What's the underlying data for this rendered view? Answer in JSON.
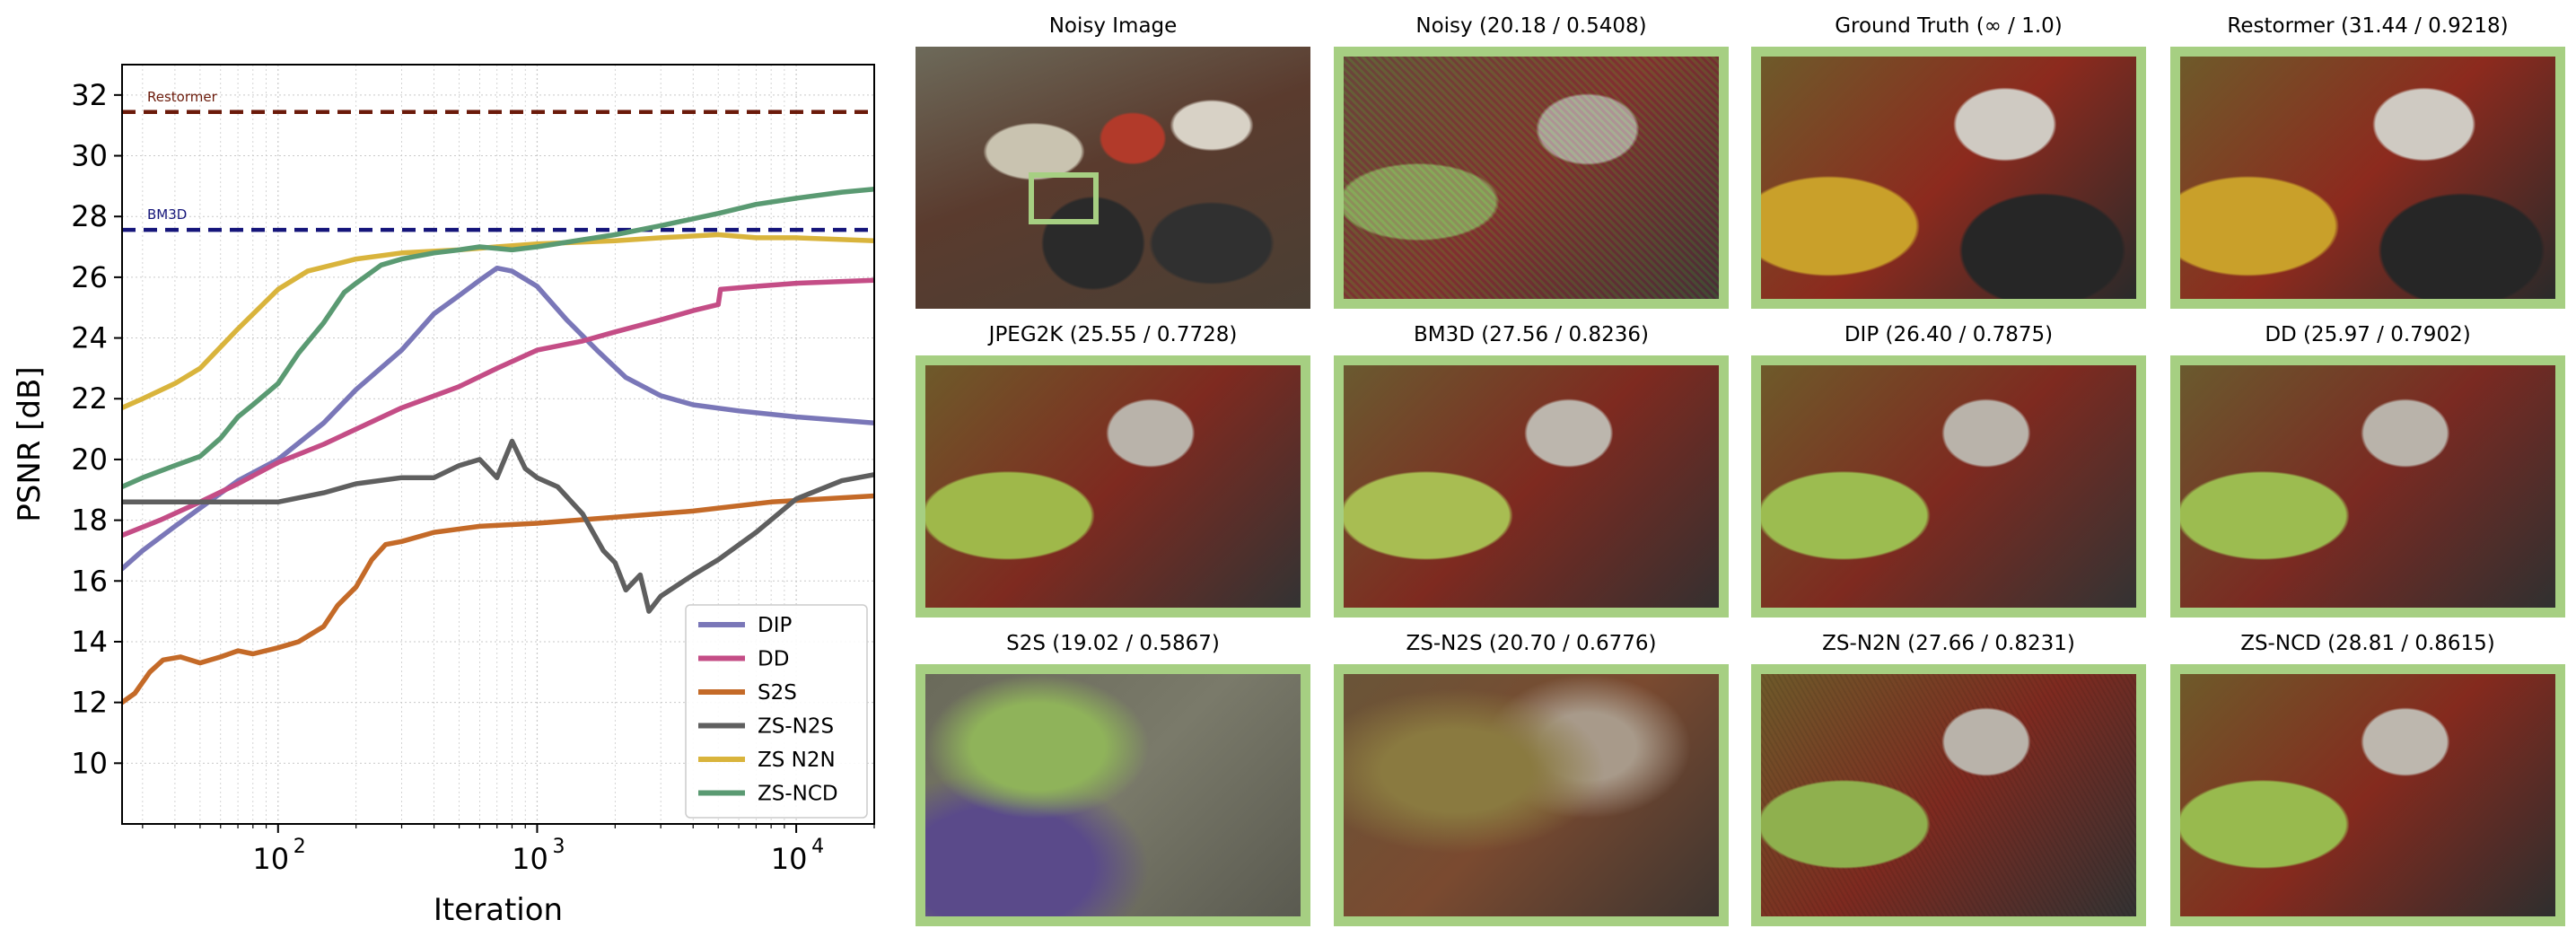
{
  "chart_data": {
    "type": "line",
    "xlabel": "Iteration",
    "ylabel": "PSNR [dB]",
    "xscale": "log",
    "xlim": [
      25,
      20000
    ],
    "ylim": [
      8,
      33
    ],
    "xticks": [
      100,
      1000,
      10000
    ],
    "xtick_labels": [
      "10",
      "10",
      "10"
    ],
    "xtick_exponents": [
      "2",
      "3",
      "4"
    ],
    "yticks": [
      10,
      12,
      14,
      16,
      18,
      20,
      22,
      24,
      26,
      28,
      30,
      32
    ],
    "ytick_labels": [
      "10",
      "12",
      "14",
      "16",
      "18",
      "20",
      "22",
      "24",
      "26",
      "28",
      "30",
      "32"
    ],
    "grid": true,
    "legend_position": "lower-right",
    "reference_lines": [
      {
        "name": "Restormer",
        "y": 31.44,
        "color": "#6b1a0a"
      },
      {
        "name": "BM3D",
        "y": 27.56,
        "color": "#15157a"
      }
    ],
    "series": [
      {
        "name": "DIP",
        "color": "#7a77b8",
        "points": [
          [
            25,
            16.4
          ],
          [
            30,
            17.0
          ],
          [
            40,
            17.8
          ],
          [
            50,
            18.4
          ],
          [
            70,
            19.3
          ],
          [
            100,
            20.0
          ],
          [
            150,
            21.2
          ],
          [
            200,
            22.3
          ],
          [
            300,
            23.6
          ],
          [
            400,
            24.8
          ],
          [
            500,
            25.4
          ],
          [
            600,
            25.9
          ],
          [
            700,
            26.3
          ],
          [
            800,
            26.2
          ],
          [
            1000,
            25.7
          ],
          [
            1300,
            24.6
          ],
          [
            1700,
            23.6
          ],
          [
            2200,
            22.7
          ],
          [
            3000,
            22.1
          ],
          [
            4000,
            21.8
          ],
          [
            6000,
            21.6
          ],
          [
            10000,
            21.4
          ],
          [
            20000,
            21.2
          ]
        ]
      },
      {
        "name": "DD",
        "color": "#c44d86",
        "points": [
          [
            25,
            17.5
          ],
          [
            35,
            18.0
          ],
          [
            50,
            18.6
          ],
          [
            70,
            19.2
          ],
          [
            100,
            19.9
          ],
          [
            150,
            20.5
          ],
          [
            200,
            21.0
          ],
          [
            300,
            21.7
          ],
          [
            500,
            22.4
          ],
          [
            700,
            23.0
          ],
          [
            1000,
            23.6
          ],
          [
            1500,
            23.9
          ],
          [
            2000,
            24.2
          ],
          [
            3000,
            24.6
          ],
          [
            4000,
            24.9
          ],
          [
            5000,
            25.1
          ],
          [
            5100,
            25.6
          ],
          [
            7000,
            25.7
          ],
          [
            10000,
            25.8
          ],
          [
            20000,
            25.9
          ]
        ]
      },
      {
        "name": "S2S",
        "color": "#c46a28",
        "points": [
          [
            25,
            12.0
          ],
          [
            28,
            12.3
          ],
          [
            32,
            13.0
          ],
          [
            36,
            13.4
          ],
          [
            42,
            13.5
          ],
          [
            50,
            13.3
          ],
          [
            60,
            13.5
          ],
          [
            70,
            13.7
          ],
          [
            80,
            13.6
          ],
          [
            100,
            13.8
          ],
          [
            120,
            14.0
          ],
          [
            150,
            14.5
          ],
          [
            170,
            15.2
          ],
          [
            200,
            15.8
          ],
          [
            230,
            16.7
          ],
          [
            260,
            17.2
          ],
          [
            300,
            17.3
          ],
          [
            400,
            17.6
          ],
          [
            600,
            17.8
          ],
          [
            1000,
            17.9
          ],
          [
            2000,
            18.1
          ],
          [
            4000,
            18.3
          ],
          [
            8000,
            18.6
          ],
          [
            20000,
            18.8
          ]
        ]
      },
      {
        "name": "ZS-N2S",
        "color": "#5f5f5f",
        "points": [
          [
            25,
            18.6
          ],
          [
            50,
            18.6
          ],
          [
            100,
            18.6
          ],
          [
            150,
            18.9
          ],
          [
            200,
            19.2
          ],
          [
            300,
            19.4
          ],
          [
            400,
            19.4
          ],
          [
            500,
            19.8
          ],
          [
            600,
            20.0
          ],
          [
            700,
            19.4
          ],
          [
            800,
            20.6
          ],
          [
            900,
            19.7
          ],
          [
            1000,
            19.4
          ],
          [
            1200,
            19.1
          ],
          [
            1500,
            18.2
          ],
          [
            1800,
            17.0
          ],
          [
            2000,
            16.6
          ],
          [
            2200,
            15.7
          ],
          [
            2500,
            16.2
          ],
          [
            2700,
            15.0
          ],
          [
            3000,
            15.5
          ],
          [
            4000,
            16.2
          ],
          [
            5000,
            16.7
          ],
          [
            7000,
            17.6
          ],
          [
            10000,
            18.7
          ],
          [
            15000,
            19.3
          ],
          [
            20000,
            19.5
          ]
        ]
      },
      {
        "name": "ZS N2N",
        "color": "#d9b43c",
        "points": [
          [
            25,
            21.7
          ],
          [
            30,
            22.0
          ],
          [
            40,
            22.5
          ],
          [
            50,
            23.0
          ],
          [
            70,
            24.3
          ],
          [
            100,
            25.6
          ],
          [
            130,
            26.2
          ],
          [
            200,
            26.6
          ],
          [
            300,
            26.8
          ],
          [
            500,
            26.9
          ],
          [
            700,
            27.0
          ],
          [
            1000,
            27.1
          ],
          [
            2000,
            27.2
          ],
          [
            3000,
            27.3
          ],
          [
            5000,
            27.4
          ],
          [
            7000,
            27.3
          ],
          [
            10000,
            27.3
          ],
          [
            20000,
            27.2
          ]
        ]
      },
      {
        "name": "ZS-NCD",
        "color": "#5a9a72",
        "points": [
          [
            25,
            19.1
          ],
          [
            30,
            19.4
          ],
          [
            40,
            19.8
          ],
          [
            50,
            20.1
          ],
          [
            60,
            20.7
          ],
          [
            70,
            21.4
          ],
          [
            80,
            21.8
          ],
          [
            100,
            22.5
          ],
          [
            120,
            23.5
          ],
          [
            150,
            24.5
          ],
          [
            180,
            25.5
          ],
          [
            200,
            25.8
          ],
          [
            250,
            26.4
          ],
          [
            300,
            26.6
          ],
          [
            400,
            26.8
          ],
          [
            500,
            26.9
          ],
          [
            600,
            27.0
          ],
          [
            800,
            26.9
          ],
          [
            1000,
            27.0
          ],
          [
            2000,
            27.4
          ],
          [
            3000,
            27.7
          ],
          [
            5000,
            28.1
          ],
          [
            7000,
            28.4
          ],
          [
            10000,
            28.6
          ],
          [
            15000,
            28.8
          ],
          [
            20000,
            28.9
          ]
        ]
      }
    ]
  },
  "tiles": [
    {
      "title": "Noisy Image",
      "bordered": false,
      "roi": true
    },
    {
      "title": "Noisy (20.18 / 0.5408)",
      "bordered": true
    },
    {
      "title": "Ground Truth (∞ / 1.0)",
      "bordered": true
    },
    {
      "title": "Restormer (31.44 / 0.9218)",
      "bordered": true
    },
    {
      "title": "JPEG2K (25.55 / 0.7728)",
      "bordered": true
    },
    {
      "title": "BM3D (27.56 / 0.8236)",
      "bordered": true
    },
    {
      "title": "DIP (26.40 / 0.7875)",
      "bordered": true
    },
    {
      "title": "DD (25.97 / 0.7902)",
      "bordered": true
    },
    {
      "title": "S2S (19.02 / 0.5867)",
      "bordered": true
    },
    {
      "title": "ZS-N2S (20.70 / 0.6776)",
      "bordered": true
    },
    {
      "title": "ZS-N2N (27.66 / 0.8231)",
      "bordered": true
    },
    {
      "title": "ZS-NCD (28.81 / 0.8615)",
      "bordered": true
    }
  ],
  "colors": {
    "tile_border": "#a6cf82"
  }
}
